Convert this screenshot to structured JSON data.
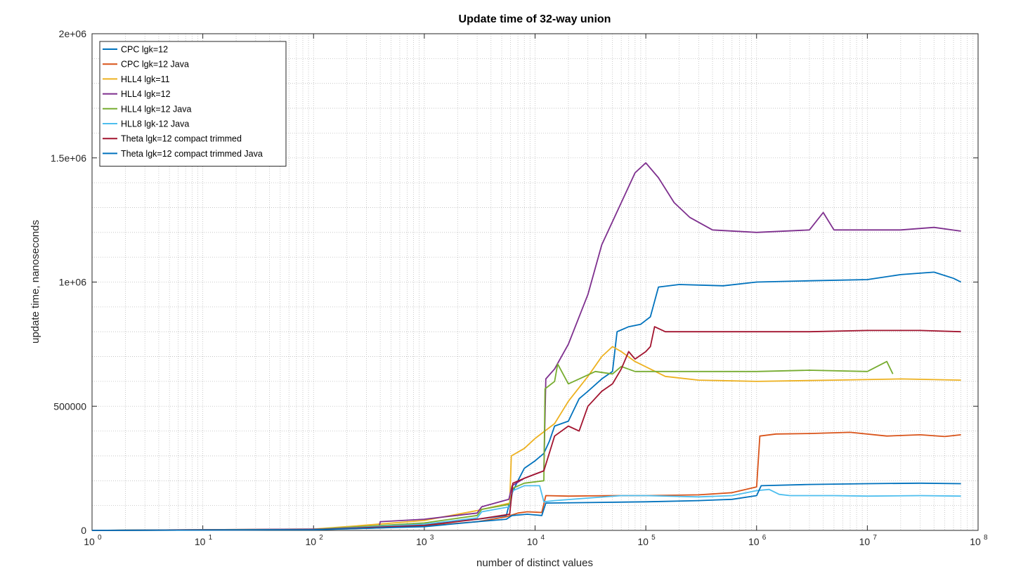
{
  "chart_data": {
    "type": "line",
    "title": "Update time of 32-way union",
    "xlabel": "number of distinct values",
    "ylabel": "update time, nanoseconds",
    "xscale": "log",
    "xlim": [
      1,
      100000000
    ],
    "ylim": [
      0,
      2000000
    ],
    "x_ticks": [
      {
        "base": "10",
        "exp": "0",
        "value": 1
      },
      {
        "base": "10",
        "exp": "1",
        "value": 10
      },
      {
        "base": "10",
        "exp": "2",
        "value": 100
      },
      {
        "base": "10",
        "exp": "3",
        "value": 1000
      },
      {
        "base": "10",
        "exp": "4",
        "value": 10000
      },
      {
        "base": "10",
        "exp": "5",
        "value": 100000
      },
      {
        "base": "10",
        "exp": "6",
        "value": 1000000
      },
      {
        "base": "10",
        "exp": "7",
        "value": 10000000
      },
      {
        "base": "10",
        "exp": "8",
        "value": 100000000
      }
    ],
    "y_ticks": [
      {
        "label": "0",
        "value": 0
      },
      {
        "label": "500000",
        "value": 500000
      },
      {
        "label": "1e+06",
        "value": 1000000
      },
      {
        "label": "1.5e+06",
        "value": 1500000
      },
      {
        "label": "2e+06",
        "value": 2000000
      }
    ],
    "grid": true,
    "legend_position": "top-left",
    "series": [
      {
        "name": "CPC lgk=12",
        "color": "#0072bd",
        "points": [
          [
            1,
            0
          ],
          [
            100,
            4000
          ],
          [
            400,
            15000
          ],
          [
            1000,
            25000
          ],
          [
            3000,
            45000
          ],
          [
            5500,
            60000
          ],
          [
            6200,
            150000
          ],
          [
            7000,
            200000
          ],
          [
            8000,
            250000
          ],
          [
            10000,
            280000
          ],
          [
            12000,
            310000
          ],
          [
            13500,
            360000
          ],
          [
            15000,
            420000
          ],
          [
            20000,
            440000
          ],
          [
            25000,
            530000
          ],
          [
            30000,
            560000
          ],
          [
            40000,
            610000
          ],
          [
            50000,
            640000
          ],
          [
            55000,
            800000
          ],
          [
            70000,
            820000
          ],
          [
            90000,
            830000
          ],
          [
            110000,
            860000
          ],
          [
            130000,
            980000
          ],
          [
            200000,
            990000
          ],
          [
            500000,
            985000
          ],
          [
            1000000,
            1000000
          ],
          [
            3000000,
            1005000
          ],
          [
            10000000,
            1010000
          ],
          [
            20000000,
            1030000
          ],
          [
            40000000,
            1040000
          ],
          [
            60000000,
            1015000
          ],
          [
            70000000,
            1000000
          ]
        ]
      },
      {
        "name": "CPC lgk=12 Java",
        "color": "#d95319",
        "points": [
          [
            1,
            0
          ],
          [
            100,
            3000
          ],
          [
            400,
            10000
          ],
          [
            1000,
            18000
          ],
          [
            3000,
            35000
          ],
          [
            5500,
            55000
          ],
          [
            7000,
            70000
          ],
          [
            8500,
            75000
          ],
          [
            11500,
            72000
          ],
          [
            12500,
            140000
          ],
          [
            20000,
            138000
          ],
          [
            50000,
            140000
          ],
          [
            100000,
            140000
          ],
          [
            300000,
            143000
          ],
          [
            600000,
            152000
          ],
          [
            1000000,
            175000
          ],
          [
            1070000,
            380000
          ],
          [
            1500000,
            388000
          ],
          [
            3000000,
            390000
          ],
          [
            7000000,
            395000
          ],
          [
            15000000,
            380000
          ],
          [
            30000000,
            385000
          ],
          [
            50000000,
            378000
          ],
          [
            70000000,
            385000
          ]
        ]
      },
      {
        "name": "HLL4 lgk=11",
        "color": "#edb120",
        "points": [
          [
            1,
            0
          ],
          [
            100,
            5000
          ],
          [
            200,
            15000
          ],
          [
            1000,
            40000
          ],
          [
            3000,
            80000
          ],
          [
            5900,
            110000
          ],
          [
            6100,
            300000
          ],
          [
            8000,
            330000
          ],
          [
            10000,
            370000
          ],
          [
            15000,
            430000
          ],
          [
            20000,
            520000
          ],
          [
            30000,
            620000
          ],
          [
            40000,
            700000
          ],
          [
            50000,
            740000
          ],
          [
            60000,
            720000
          ],
          [
            80000,
            680000
          ],
          [
            150000,
            620000
          ],
          [
            300000,
            605000
          ],
          [
            1000000,
            600000
          ],
          [
            5000000,
            605000
          ],
          [
            20000000,
            610000
          ],
          [
            70000000,
            605000
          ]
        ]
      },
      {
        "name": "HLL4 lgk=12",
        "color": "#7e2f8e",
        "points": [
          [
            1,
            0
          ],
          [
            100,
            5000
          ],
          [
            390,
            10000
          ],
          [
            400,
            35000
          ],
          [
            1000,
            45000
          ],
          [
            3000,
            70000
          ],
          [
            3300,
            95000
          ],
          [
            5800,
            125000
          ],
          [
            6200,
            180000
          ],
          [
            8000,
            210000
          ],
          [
            12000,
            240000
          ],
          [
            12500,
            610000
          ],
          [
            15000,
            650000
          ],
          [
            20000,
            750000
          ],
          [
            30000,
            950000
          ],
          [
            40000,
            1150000
          ],
          [
            60000,
            1320000
          ],
          [
            80000,
            1440000
          ],
          [
            100000,
            1480000
          ],
          [
            130000,
            1420000
          ],
          [
            180000,
            1320000
          ],
          [
            250000,
            1260000
          ],
          [
            400000,
            1210000
          ],
          [
            1000000,
            1200000
          ],
          [
            3000000,
            1210000
          ],
          [
            4000000,
            1280000
          ],
          [
            5000000,
            1210000
          ],
          [
            20000000,
            1210000
          ],
          [
            40000000,
            1220000
          ],
          [
            70000000,
            1205000
          ]
        ]
      },
      {
        "name": "HLL4 lgk=12 Java",
        "color": "#77ac30",
        "points": [
          [
            1,
            0
          ],
          [
            100,
            4000
          ],
          [
            1000,
            30000
          ],
          [
            3000,
            60000
          ],
          [
            3300,
            85000
          ],
          [
            5900,
            105000
          ],
          [
            6300,
            170000
          ],
          [
            8000,
            190000
          ],
          [
            12000,
            200000
          ],
          [
            12300,
            570000
          ],
          [
            15000,
            600000
          ],
          [
            16000,
            670000
          ],
          [
            20000,
            590000
          ],
          [
            25000,
            610000
          ],
          [
            35000,
            640000
          ],
          [
            50000,
            630000
          ],
          [
            60000,
            660000
          ],
          [
            80000,
            640000
          ],
          [
            150000,
            640000
          ],
          [
            300000,
            640000
          ],
          [
            1000000,
            640000
          ],
          [
            3000000,
            645000
          ],
          [
            10000000,
            640000
          ],
          [
            15000000,
            680000
          ],
          [
            17000000,
            630000
          ]
        ]
      },
      {
        "name": "HLL8 lgk-12 Java",
        "color": "#4dbeee",
        "points": [
          [
            1,
            0
          ],
          [
            100,
            3000
          ],
          [
            1000,
            25000
          ],
          [
            3000,
            50000
          ],
          [
            3300,
            75000
          ],
          [
            5900,
            95000
          ],
          [
            6300,
            160000
          ],
          [
            8000,
            180000
          ],
          [
            11000,
            180000
          ],
          [
            12000,
            115000
          ],
          [
            15000,
            120000
          ],
          [
            30000,
            130000
          ],
          [
            60000,
            140000
          ],
          [
            100000,
            140000
          ],
          [
            300000,
            135000
          ],
          [
            600000,
            140000
          ],
          [
            1000000,
            160000
          ],
          [
            1300000,
            165000
          ],
          [
            1600000,
            145000
          ],
          [
            2000000,
            140000
          ],
          [
            5000000,
            140000
          ],
          [
            10000000,
            138000
          ],
          [
            30000000,
            140000
          ],
          [
            70000000,
            138000
          ]
        ]
      },
      {
        "name": "Theta lgk=12 compact trimmed",
        "color": "#a2142f",
        "points": [
          [
            1,
            0
          ],
          [
            100,
            3000
          ],
          [
            1000,
            20000
          ],
          [
            3000,
            45000
          ],
          [
            5900,
            65000
          ],
          [
            6300,
            190000
          ],
          [
            8000,
            210000
          ],
          [
            12000,
            240000
          ],
          [
            15000,
            380000
          ],
          [
            20000,
            420000
          ],
          [
            25000,
            400000
          ],
          [
            30000,
            500000
          ],
          [
            40000,
            560000
          ],
          [
            50000,
            590000
          ],
          [
            60000,
            650000
          ],
          [
            70000,
            720000
          ],
          [
            80000,
            690000
          ],
          [
            100000,
            720000
          ],
          [
            110000,
            740000
          ],
          [
            120000,
            820000
          ],
          [
            150000,
            800000
          ],
          [
            500000,
            800000
          ],
          [
            1000000,
            800000
          ],
          [
            3000000,
            800000
          ],
          [
            10000000,
            805000
          ],
          [
            30000000,
            805000
          ],
          [
            70000000,
            800000
          ]
        ]
      },
      {
        "name": "Theta lgk=12 compact trimmed Java",
        "color": "#0072bd",
        "points": [
          [
            1,
            0
          ],
          [
            100,
            2500
          ],
          [
            1000,
            15000
          ],
          [
            3000,
            35000
          ],
          [
            5500,
            45000
          ],
          [
            6200,
            60000
          ],
          [
            8500,
            65000
          ],
          [
            11500,
            60000
          ],
          [
            12500,
            110000
          ],
          [
            30000,
            112000
          ],
          [
            100000,
            115000
          ],
          [
            300000,
            120000
          ],
          [
            600000,
            125000
          ],
          [
            1000000,
            140000
          ],
          [
            1100000,
            180000
          ],
          [
            3000000,
            185000
          ],
          [
            10000000,
            188000
          ],
          [
            30000000,
            190000
          ],
          [
            70000000,
            188000
          ]
        ]
      }
    ]
  }
}
